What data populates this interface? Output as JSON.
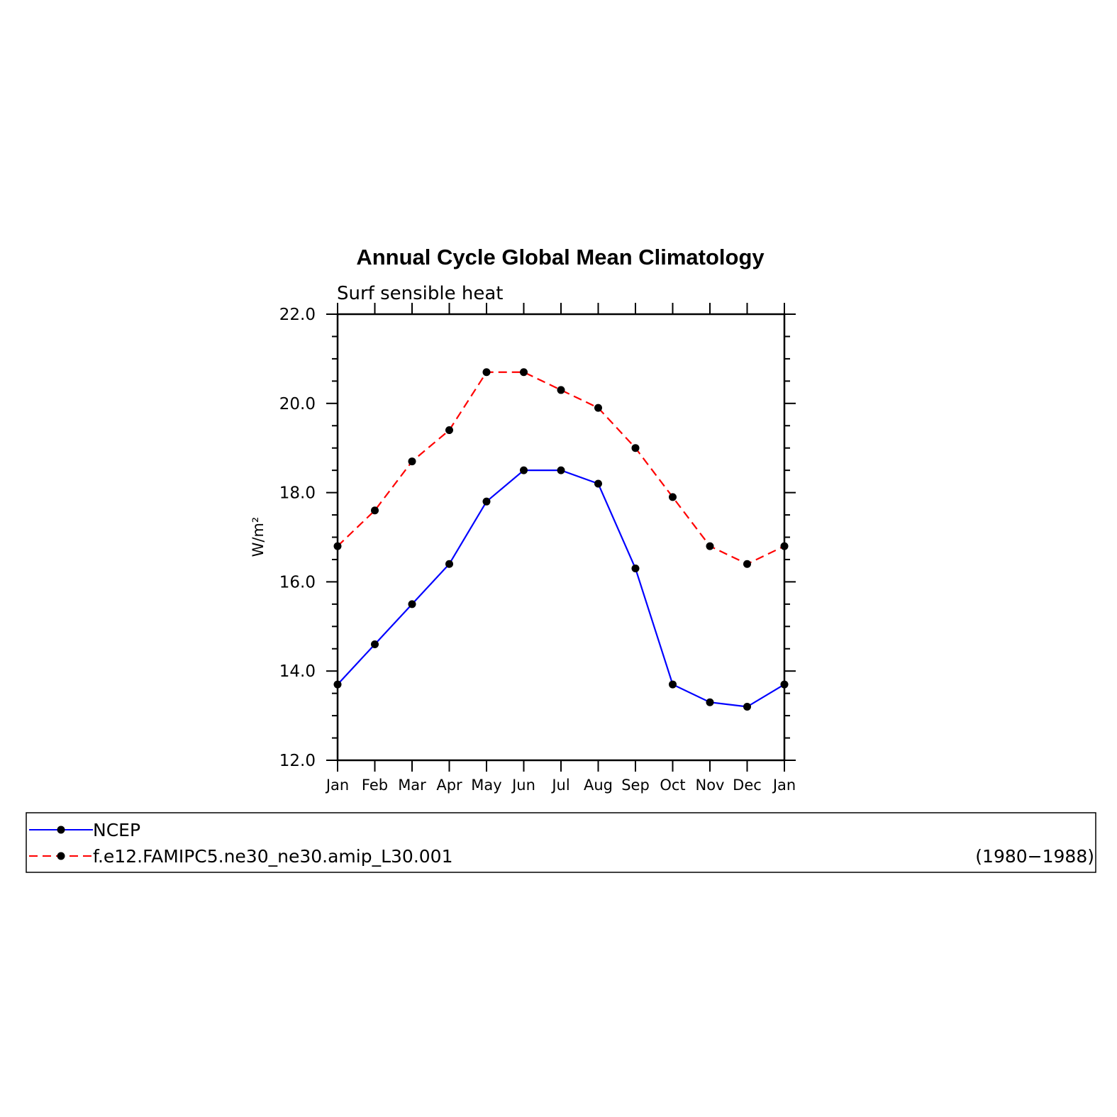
{
  "chart_data": {
    "type": "line",
    "title": "Annual Cycle Global Mean Climatology",
    "subtitle": "Surf sensible heat",
    "ylabel": "W/m²",
    "ylim": [
      12.0,
      22.0
    ],
    "yticks": [
      "12.0",
      "14.0",
      "16.0",
      "18.0",
      "20.0",
      "22.0"
    ],
    "categories": [
      "Jan",
      "Feb",
      "Mar",
      "Apr",
      "May",
      "Jun",
      "Jul",
      "Aug",
      "Sep",
      "Oct",
      "Nov",
      "Dec",
      "Jan"
    ],
    "series": [
      {
        "name": "NCEP",
        "color": "#0000ff",
        "style": "solid",
        "marker": "dot",
        "values": [
          13.7,
          14.6,
          15.5,
          16.4,
          17.8,
          18.5,
          18.5,
          18.2,
          16.3,
          13.7,
          13.3,
          13.2,
          13.7
        ]
      },
      {
        "name": "f.e12.FAMIPC5.ne30_ne30.amip_L30.001",
        "color": "#ff0000",
        "style": "dashed",
        "marker": "dot",
        "note": "(1980−1988)",
        "values": [
          16.8,
          17.6,
          18.7,
          19.4,
          20.7,
          20.7,
          20.3,
          19.9,
          19.0,
          17.9,
          16.8,
          16.4,
          16.8
        ]
      }
    ],
    "legend_placement": "bottom",
    "grid": false
  }
}
